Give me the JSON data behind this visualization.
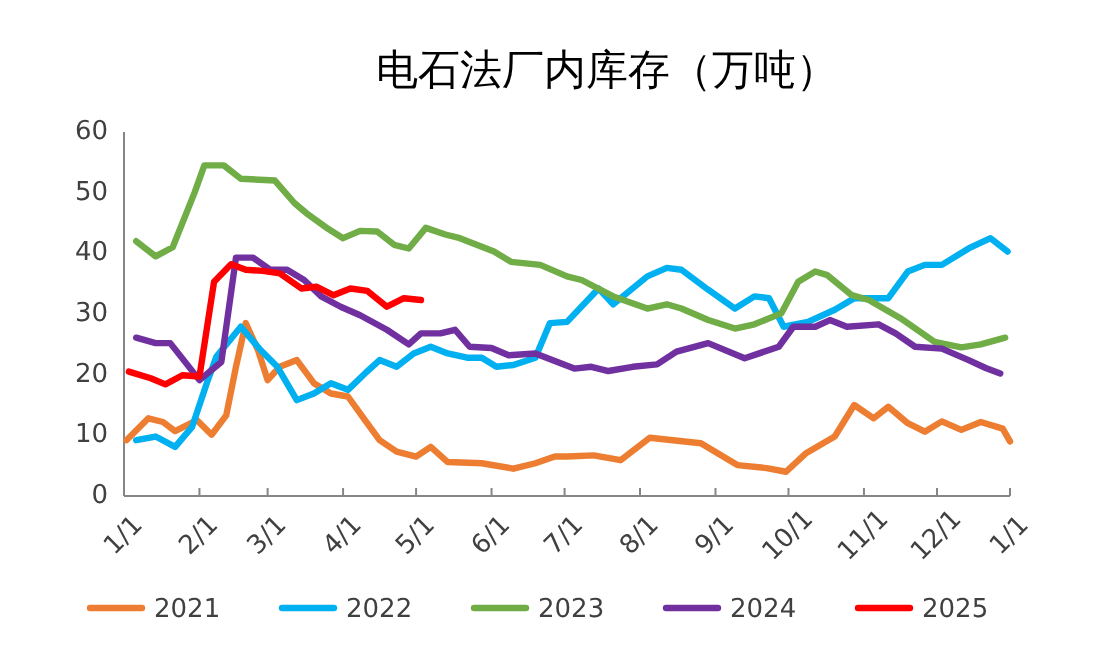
{
  "chart_data": {
    "type": "line",
    "title": "电石法厂内库存（万吨）",
    "xlim": [
      "--01-01",
      "--12-31"
    ],
    "ylim": [
      0,
      60
    ],
    "yticks": [
      0,
      10,
      20,
      30,
      40,
      50,
      60
    ],
    "xticks": [
      {
        "value": "--01-01",
        "label": "1/1"
      },
      {
        "value": "--02-01",
        "label": "2/1"
      },
      {
        "value": "--03-01",
        "label": "3/1"
      },
      {
        "value": "--04-01",
        "label": "4/1"
      },
      {
        "value": "--05-01",
        "label": "5/1"
      },
      {
        "value": "--06-01",
        "label": "6/1"
      },
      {
        "value": "--07-01",
        "label": "7/1"
      },
      {
        "value": "--08-01",
        "label": "8/1"
      },
      {
        "value": "--09-01",
        "label": "9/1"
      },
      {
        "value": "--10-01",
        "label": "10/1"
      },
      {
        "value": "--11-01",
        "label": "11/1"
      },
      {
        "value": "--12-01",
        "label": "12/1"
      },
      {
        "value": "--12-31",
        "label": "1/1"
      }
    ],
    "legend": "bottom",
    "grid": false,
    "series": [
      {
        "name": "2021",
        "color": "#ed7d31",
        "x": [
          "--01-02",
          "--01-11",
          "--01-17",
          "--01-22",
          "--01-31",
          "--02-06",
          "--02-12",
          "--02-16",
          "--02-20",
          "--02-25",
          "--03-01",
          "--03-06",
          "--03-13",
          "--03-20",
          "--03-27",
          "--04-03",
          "--04-10",
          "--04-16",
          "--04-23",
          "--05-01",
          "--05-07",
          "--05-14",
          "--05-28",
          "--06-10",
          "--06-19",
          "--06-27",
          "--07-02",
          "--07-13",
          "--07-24",
          "--08-05",
          "--08-26",
          "--09-10",
          "--09-22",
          "--09-30",
          "--10-08",
          "--10-20",
          "--10-28",
          "--11-05",
          "--11-11",
          "--11-19",
          "--11-26",
          "--12-03",
          "--12-11",
          "--12-19",
          "--12-28",
          "--12-31"
        ],
        "values": [
          9.2,
          12.8,
          12.2,
          10.7,
          12.5,
          10.1,
          13.3,
          21.3,
          28.5,
          24.1,
          19.1,
          21.3,
          22.4,
          18.6,
          16.9,
          16.4,
          12.5,
          9.2,
          7.3,
          6.5,
          8.1,
          5.6,
          5.4,
          4.5,
          5.4,
          6.5,
          6.5,
          6.7,
          5.9,
          9.6,
          8.7,
          5.1,
          4.6,
          4.0,
          7.0,
          9.8,
          15.0,
          12.8,
          14.7,
          12.0,
          10.6,
          12.3,
          10.9,
          12.2,
          11.1,
          9.0
        ]
      },
      {
        "name": "2022",
        "color": "#00b0f0",
        "x": [
          "--01-06",
          "--01-14",
          "--01-22",
          "--01-29",
          "--02-04",
          "--02-08",
          "--02-18",
          "--02-26",
          "--03-05",
          "--03-13",
          "--03-20",
          "--03-27",
          "--04-03",
          "--04-10",
          "--04-16",
          "--04-23",
          "--04-30",
          "--05-07",
          "--05-14",
          "--05-22",
          "--05-28",
          "--06-03",
          "--06-10",
          "--06-19",
          "--06-25",
          "--07-02",
          "--07-15",
          "--07-21",
          "--08-04",
          "--08-12",
          "--08-18",
          "--08-29",
          "--09-09",
          "--09-17",
          "--09-23",
          "--09-29",
          "--10-09",
          "--10-20",
          "--10-28",
          "--11-11",
          "--11-19",
          "--11-26",
          "--12-03",
          "--12-14",
          "--12-23",
          "--12-30"
        ],
        "values": [
          9.2,
          9.8,
          8.1,
          11.4,
          18.6,
          23.0,
          27.9,
          24.1,
          21.3,
          15.8,
          16.9,
          18.6,
          17.5,
          20.2,
          22.4,
          21.3,
          23.5,
          24.6,
          23.5,
          22.8,
          22.8,
          21.3,
          21.6,
          22.8,
          28.5,
          28.7,
          34.2,
          31.6,
          36.2,
          37.6,
          37.3,
          34.0,
          30.9,
          32.9,
          32.6,
          27.9,
          28.7,
          30.7,
          32.6,
          32.6,
          37.0,
          38.1,
          38.1,
          40.8,
          42.5,
          40.3
        ]
      },
      {
        "name": "2023",
        "color": "#70ad47",
        "x": [
          "--01-06",
          "--01-14",
          "--01-21",
          "--01-30",
          "--02-03",
          "--02-11",
          "--02-18",
          "--03-04",
          "--03-12",
          "--03-17",
          "--03-26",
          "--04-01",
          "--04-08",
          "--04-15",
          "--04-22",
          "--04-28",
          "--05-05",
          "--05-13",
          "--05-19",
          "--06-02",
          "--06-09",
          "--06-21",
          "--07-02",
          "--07-08",
          "--07-21",
          "--08-04",
          "--08-12",
          "--08-18",
          "--08-29",
          "--09-09",
          "--09-17",
          "--09-28",
          "--10-05",
          "--10-12",
          "--10-17",
          "--10-27",
          "--11-03",
          "--11-16",
          "--11-30",
          "--12-11",
          "--12-19",
          "--12-29"
        ],
        "values": [
          42.0,
          39.5,
          41.0,
          50.0,
          54.5,
          54.5,
          52.3,
          52.0,
          48.3,
          46.6,
          44.0,
          42.5,
          43.7,
          43.6,
          41.4,
          40.8,
          44.2,
          43.1,
          42.5,
          40.3,
          38.6,
          38.1,
          36.2,
          35.6,
          32.9,
          30.9,
          31.6,
          30.9,
          29.0,
          27.6,
          28.3,
          30.1,
          35.3,
          37.0,
          36.4,
          33.1,
          32.3,
          29.3,
          25.4,
          24.5,
          25.0,
          26.1
        ]
      },
      {
        "name": "2024",
        "color": "#7030a0",
        "x": [
          "--01-06",
          "--01-14",
          "--01-20",
          "--02-01",
          "--02-10",
          "--02-16",
          "--02-23",
          "--03-02",
          "--03-09",
          "--03-16",
          "--03-23",
          "--03-31",
          "--04-08",
          "--04-19",
          "--04-28",
          "--05-03",
          "--05-11",
          "--05-17",
          "--05-23",
          "--06-01",
          "--06-08",
          "--06-19",
          "--07-05",
          "--07-12",
          "--07-19",
          "--07-29",
          "--08-08",
          "--08-16",
          "--08-29",
          "--09-13",
          "--09-27",
          "--10-03",
          "--10-12",
          "--10-18",
          "--10-25",
          "--11-07",
          "--11-14",
          "--11-22",
          "--12-03",
          "--12-14",
          "--12-21",
          "--12-27"
        ],
        "values": [
          26.1,
          25.2,
          25.2,
          19.1,
          22.1,
          39.3,
          39.3,
          37.3,
          37.3,
          35.6,
          32.9,
          31.2,
          29.8,
          27.4,
          25.0,
          26.8,
          26.8,
          27.4,
          24.6,
          24.4,
          23.2,
          23.5,
          21.0,
          21.3,
          20.6,
          21.3,
          21.7,
          23.8,
          25.2,
          22.7,
          24.6,
          27.9,
          27.9,
          29.0,
          27.9,
          28.3,
          26.8,
          24.6,
          24.3,
          22.4,
          21.1,
          20.2
        ]
      },
      {
        "name": "2025",
        "color": "#ff0000",
        "x": [
          "--01-03",
          "--01-12",
          "--01-18",
          "--01-25",
          "--02-01",
          "--02-07",
          "--02-14",
          "--02-20",
          "--02-27",
          "--03-06",
          "--03-15",
          "--03-21",
          "--03-28",
          "--04-04",
          "--04-11",
          "--04-19",
          "--04-26",
          "--05-03"
        ],
        "values": [
          20.5,
          19.4,
          18.4,
          19.9,
          19.7,
          35.3,
          38.2,
          37.3,
          37.1,
          36.7,
          34.2,
          34.5,
          33.1,
          34.2,
          33.8,
          31.2,
          32.6,
          32.3
        ]
      }
    ]
  }
}
